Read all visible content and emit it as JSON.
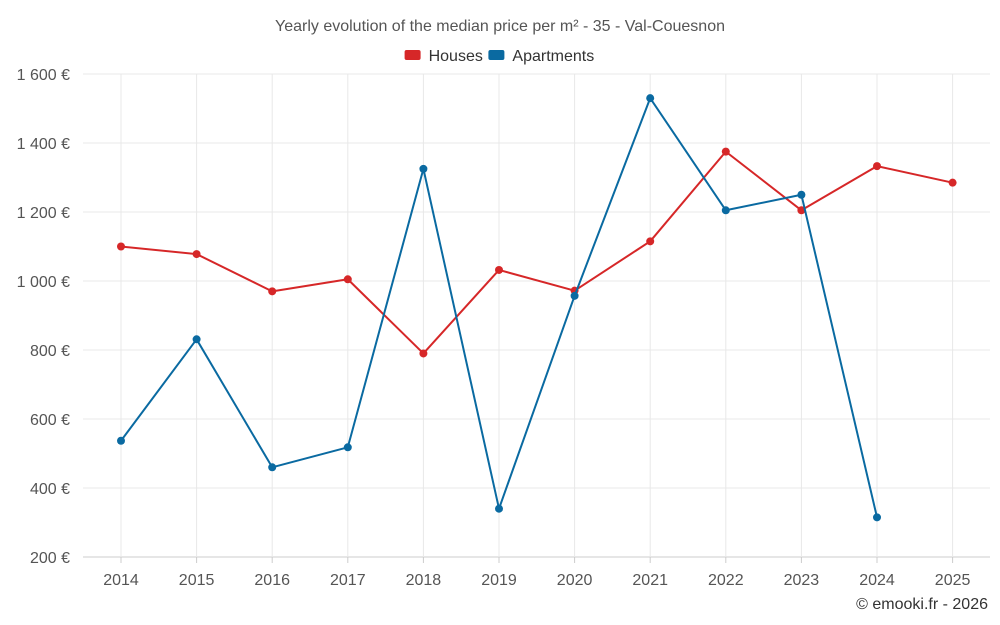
{
  "chart_data": {
    "type": "line",
    "title": "Yearly evolution of the median price per m² - 35 - Val-Couesnon",
    "categories": [
      "2014",
      "2015",
      "2016",
      "2017",
      "2018",
      "2019",
      "2020",
      "2021",
      "2022",
      "2023",
      "2024",
      "2025"
    ],
    "series": [
      {
        "name": "Houses",
        "color": "#d62728",
        "values": [
          1100,
          1078,
          970,
          1005,
          790,
          1032,
          972,
          1115,
          1375,
          1205,
          1333,
          1285
        ]
      },
      {
        "name": "Apartments",
        "color": "#0a6aa1",
        "values": [
          537,
          831,
          460,
          518,
          1325,
          340,
          957,
          1530,
          1205,
          1250,
          315,
          null
        ]
      }
    ],
    "ylim": [
      200,
      1600
    ],
    "yticks": [
      200,
      400,
      600,
      800,
      1000,
      1200,
      1400,
      1600
    ],
    "ytick_labels": [
      "200 €",
      "400 €",
      "600 €",
      "800 €",
      "1 000 €",
      "1 200 €",
      "1 400 €",
      "1 600 €"
    ],
    "xlabel": "",
    "ylabel": "",
    "grid": true,
    "legend_position": "top-center"
  },
  "credit": "© emooki.fr - 2026"
}
